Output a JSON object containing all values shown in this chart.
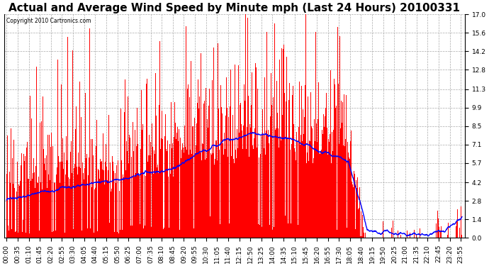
{
  "title": "Actual and Average Wind Speed by Minute mph (Last 24 Hours) 20100331",
  "copyright": "Copyright 2010 Cartronics.com",
  "yticks": [
    0.0,
    1.4,
    2.8,
    4.2,
    5.7,
    7.1,
    8.5,
    9.9,
    11.3,
    12.8,
    14.2,
    15.6,
    17.0
  ],
  "ylim": [
    0.0,
    17.0
  ],
  "background_color": "#ffffff",
  "plot_bg_color": "#ffffff",
  "bar_color": "#ff0000",
  "line_color": "#0000ff",
  "title_fontsize": 11,
  "tick_fontsize": 6.5,
  "n_minutes": 1440,
  "tick_interval": 35
}
